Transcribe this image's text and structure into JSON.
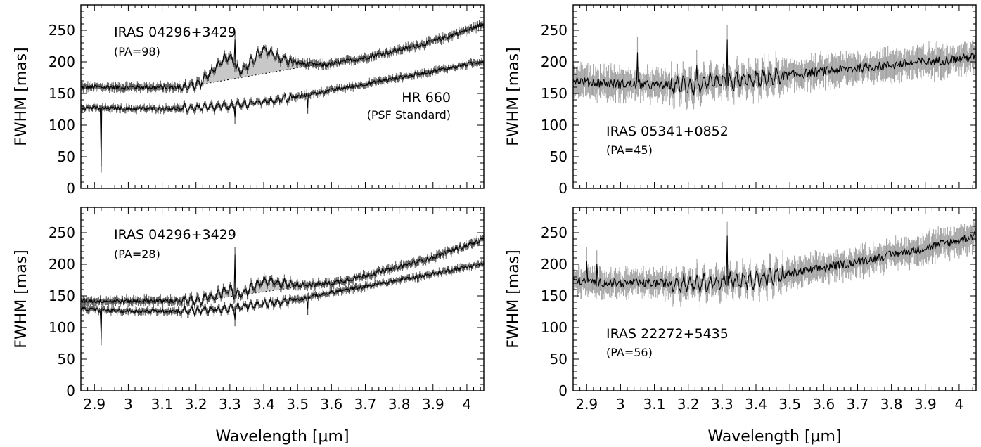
{
  "colors": {
    "band": "#a0a0a0",
    "dark_band": "#555555",
    "line": "#000000",
    "fill_excess": "#c8c8c8"
  },
  "chart_data": [
    {
      "type": "line",
      "panel": "top-left",
      "xlim": [
        2.86,
        4.05
      ],
      "ylim": [
        0,
        290
      ],
      "xticks": [
        2.9,
        3.0,
        3.1,
        3.2,
        3.3,
        3.4,
        3.5,
        3.6,
        3.7,
        3.8,
        3.9,
        4.0
      ],
      "xtick_labels": [
        "2.9",
        "3",
        "3.1",
        "3.2",
        "3.3",
        "3.4",
        "3.5",
        "3.6",
        "3.7",
        "3.8",
        "3.9",
        "4"
      ],
      "yticks": [
        0,
        50,
        100,
        150,
        200,
        250
      ],
      "ytick_labels": [
        "0",
        "50",
        "100",
        "150",
        "200",
        "250"
      ],
      "ylabel": "FWHM [mas]",
      "xlabel": "",
      "show_xtick_labels": false,
      "band_style": "dark",
      "shaded_excess": true,
      "annotations": [
        {
          "text": "IRAS 04296+3429",
          "style": "main",
          "pos": "upper-left"
        },
        {
          "text": "(PA=98)",
          "style": "sub",
          "pos": "upper-left-2"
        },
        {
          "text": "HR 660",
          "style": "main",
          "pos": "mid-right"
        },
        {
          "text": "(PSF Standard)",
          "style": "sub",
          "pos": "mid-right-2"
        }
      ],
      "series": [
        {
          "name": "IRAS 04296+3429",
          "x": [
            2.86,
            2.9,
            2.95,
            3.0,
            3.05,
            3.1,
            3.15,
            3.2,
            3.22,
            3.25,
            3.28,
            3.3,
            3.31,
            3.32,
            3.33,
            3.35,
            3.38,
            3.4,
            3.42,
            3.45,
            3.5,
            3.55,
            3.6,
            3.7,
            3.8,
            3.9,
            4.0,
            4.05
          ],
          "y": [
            160,
            160,
            160,
            160,
            160,
            160,
            160,
            163,
            170,
            185,
            205,
            210,
            200,
            190,
            185,
            192,
            210,
            218,
            215,
            205,
            198,
            195,
            196,
            207,
            219,
            232,
            250,
            260
          ],
          "noise": 6,
          "spikes": [
            {
              "x": 3.315,
              "y": 235
            }
          ]
        },
        {
          "name": "HR 660",
          "x": [
            2.86,
            2.9,
            3.0,
            3.1,
            3.2,
            3.3,
            3.4,
            3.5,
            3.6,
            3.7,
            3.8,
            3.9,
            4.0,
            4.05
          ],
          "y": [
            128,
            127,
            126,
            126,
            127,
            130,
            137,
            145,
            155,
            165,
            175,
            185,
            196,
            201
          ],
          "noise": 5,
          "spikes": [
            {
              "x": 2.92,
              "y": 35
            },
            {
              "x": 3.315,
              "y": 112
            },
            {
              "x": 3.53,
              "y": 128
            }
          ]
        }
      ],
      "continuum": {
        "x": [
          3.2,
          3.56
        ],
        "y": [
          163,
          196
        ]
      }
    },
    {
      "type": "line",
      "panel": "top-right",
      "xlim": [
        2.86,
        4.05
      ],
      "ylim": [
        0,
        290
      ],
      "xticks": [
        2.9,
        3.0,
        3.1,
        3.2,
        3.3,
        3.4,
        3.5,
        3.6,
        3.7,
        3.8,
        3.9,
        4.0
      ],
      "xtick_labels": [
        "2.9",
        "3",
        "3.1",
        "3.2",
        "3.3",
        "3.4",
        "3.5",
        "3.6",
        "3.7",
        "3.8",
        "3.9",
        "4"
      ],
      "yticks": [
        0,
        50,
        100,
        150,
        200,
        250
      ],
      "ytick_labels": [
        "0",
        "50",
        "100",
        "150",
        "200",
        "250"
      ],
      "ylabel": "FWHM [mas]",
      "xlabel": "",
      "show_xtick_labels": false,
      "band_style": "light",
      "shaded_excess": false,
      "annotations": [
        {
          "text": "IRAS 05341+0852",
          "style": "main",
          "pos": "lower-left"
        },
        {
          "text": "(PA=45)",
          "style": "sub",
          "pos": "lower-left-2"
        }
      ],
      "series": [
        {
          "name": "IRAS 05341+0852",
          "x": [
            2.86,
            2.9,
            3.0,
            3.1,
            3.2,
            3.3,
            3.4,
            3.5,
            3.6,
            3.7,
            3.8,
            3.9,
            4.0,
            4.05
          ],
          "y": [
            172,
            168,
            165,
            163,
            163,
            167,
            172,
            179,
            185,
            190,
            195,
            200,
            205,
            208
          ],
          "noise": 12,
          "spikes": [
            {
              "x": 3.05,
              "y": 215
            },
            {
              "x": 3.225,
              "y": 195
            },
            {
              "x": 3.315,
              "y": 235
            }
          ]
        }
      ]
    },
    {
      "type": "line",
      "panel": "bottom-left",
      "xlim": [
        2.86,
        4.05
      ],
      "ylim": [
        0,
        290
      ],
      "xticks": [
        2.9,
        3.0,
        3.1,
        3.2,
        3.3,
        3.4,
        3.5,
        3.6,
        3.7,
        3.8,
        3.9,
        4.0
      ],
      "xtick_labels": [
        "2.9",
        "3",
        "3.1",
        "3.2",
        "3.3",
        "3.4",
        "3.5",
        "3.6",
        "3.7",
        "3.8",
        "3.9",
        "4"
      ],
      "yticks": [
        0,
        50,
        100,
        150,
        200,
        250
      ],
      "ytick_labels": [
        "0",
        "50",
        "100",
        "150",
        "200",
        "250"
      ],
      "ylabel": "FWHM [mas]",
      "xlabel": "Wavelength [μm]",
      "show_xtick_labels": true,
      "band_style": "dark",
      "shaded_excess": true,
      "annotations": [
        {
          "text": "IRAS 04296+3429",
          "style": "main",
          "pos": "upper-left"
        },
        {
          "text": "(PA=28)",
          "style": "sub",
          "pos": "upper-left-2"
        }
      ],
      "series": [
        {
          "name": "IRAS 04296+3429",
          "x": [
            2.86,
            2.9,
            3.0,
            3.1,
            3.2,
            3.25,
            3.28,
            3.3,
            3.31,
            3.33,
            3.35,
            3.38,
            3.4,
            3.42,
            3.45,
            3.5,
            3.55,
            3.6,
            3.7,
            3.8,
            3.9,
            4.0,
            4.05
          ],
          "y": [
            143,
            142,
            142,
            142,
            143,
            148,
            158,
            160,
            152,
            150,
            158,
            168,
            172,
            172,
            170,
            168,
            168,
            170,
            182,
            196,
            211,
            230,
            240
          ],
          "noise": 6,
          "spikes": [
            {
              "x": 3.315,
              "y": 215
            }
          ]
        },
        {
          "name": "HR 660",
          "x": [
            2.86,
            2.9,
            3.0,
            3.1,
            3.2,
            3.3,
            3.4,
            3.5,
            3.6,
            3.7,
            3.8,
            3.9,
            4.0,
            4.05
          ],
          "y": [
            130,
            128,
            126,
            126,
            127,
            130,
            137,
            145,
            155,
            165,
            175,
            185,
            196,
            201
          ],
          "noise": 5,
          "spikes": [
            {
              "x": 2.92,
              "y": 82
            },
            {
              "x": 3.315,
              "y": 112
            },
            {
              "x": 3.53,
              "y": 130
            }
          ]
        }
      ],
      "continuum": {
        "x": [
          3.22,
          3.58
        ],
        "y": [
          143,
          170
        ]
      }
    },
    {
      "type": "line",
      "panel": "bottom-right",
      "xlim": [
        2.86,
        4.05
      ],
      "ylim": [
        0,
        290
      ],
      "xticks": [
        2.9,
        3.0,
        3.1,
        3.2,
        3.3,
        3.4,
        3.5,
        3.6,
        3.7,
        3.8,
        3.9,
        4.0
      ],
      "xtick_labels": [
        "2.9",
        "3",
        "3.1",
        "3.2",
        "3.3",
        "3.4",
        "3.5",
        "3.6",
        "3.7",
        "3.8",
        "3.9",
        "4"
      ],
      "yticks": [
        0,
        50,
        100,
        150,
        200,
        250
      ],
      "ytick_labels": [
        "0",
        "50",
        "100",
        "150",
        "200",
        "250"
      ],
      "ylabel": "FWHM [mas]",
      "xlabel": "Wavelength [μm]",
      "show_xtick_labels": true,
      "band_style": "light",
      "shaded_excess": false,
      "annotations": [
        {
          "text": "IRAS 22272+5435",
          "style": "main",
          "pos": "lower-left"
        },
        {
          "text": "(PA=56)",
          "style": "sub",
          "pos": "lower-left-2"
        }
      ],
      "series": [
        {
          "name": "IRAS 22272+5435",
          "x": [
            2.86,
            2.9,
            3.0,
            3.1,
            3.2,
            3.3,
            3.4,
            3.45,
            3.5,
            3.6,
            3.7,
            3.8,
            3.9,
            4.0,
            4.05
          ],
          "y": [
            175,
            172,
            170,
            170,
            170,
            172,
            176,
            180,
            185,
            194,
            204,
            215,
            226,
            238,
            246
          ],
          "noise": 11,
          "spikes": [
            {
              "x": 3.315,
              "y": 245
            },
            {
              "x": 2.9,
              "y": 205
            },
            {
              "x": 2.93,
              "y": 200
            }
          ]
        }
      ]
    }
  ]
}
